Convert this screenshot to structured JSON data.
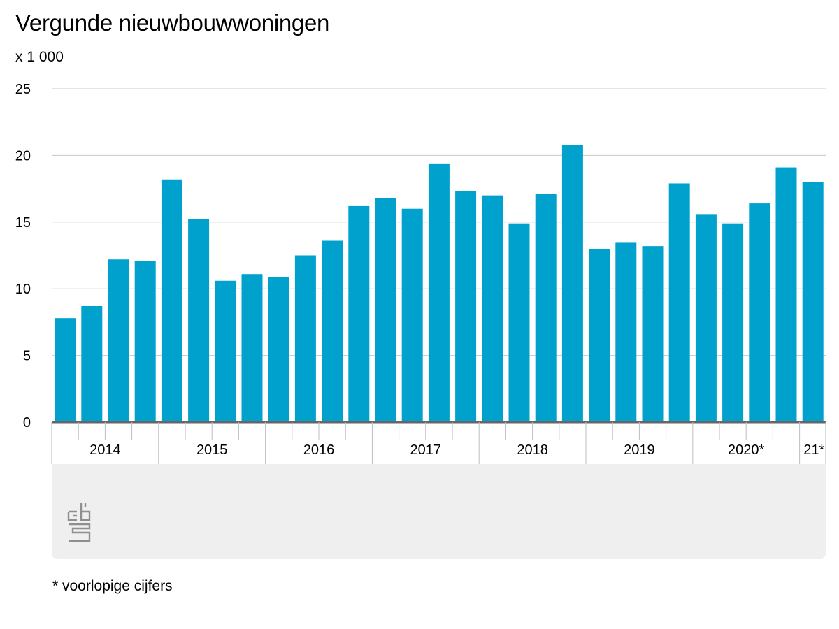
{
  "title": "Vergunde nieuwbouwwoningen",
  "unit": "x 1 000",
  "footnote": "* voorlopige cijfers",
  "colors": {
    "bar": "#00a1cd",
    "grid": "#c8c8c8",
    "baseline": "#666666",
    "footer": "#efefef"
  },
  "logo_icon": "cbs-logo-icon",
  "chart_data": {
    "type": "bar",
    "xlabel": "",
    "ylabel": "",
    "ylim": [
      0,
      25
    ],
    "yticks": [
      0,
      5,
      10,
      15,
      20,
      25
    ],
    "grid": true,
    "legend": "none",
    "year_groups": [
      {
        "label": "2014",
        "quarters": 4
      },
      {
        "label": "2015",
        "quarters": 4
      },
      {
        "label": "2016",
        "quarters": 4
      },
      {
        "label": "2017",
        "quarters": 4
      },
      {
        "label": "2018",
        "quarters": 4
      },
      {
        "label": "2019",
        "quarters": 4
      },
      {
        "label": "2020*",
        "quarters": 4
      },
      {
        "label": "21*",
        "quarters": 1
      }
    ],
    "values": [
      7.8,
      8.7,
      12.2,
      12.1,
      18.2,
      15.2,
      10.6,
      11.1,
      10.9,
      12.5,
      13.6,
      16.2,
      16.8,
      16.0,
      19.4,
      17.3,
      17.0,
      14.9,
      17.1,
      20.8,
      13.0,
      13.5,
      13.2,
      17.9,
      15.6,
      14.9,
      16.4,
      19.1,
      18.0
    ]
  }
}
